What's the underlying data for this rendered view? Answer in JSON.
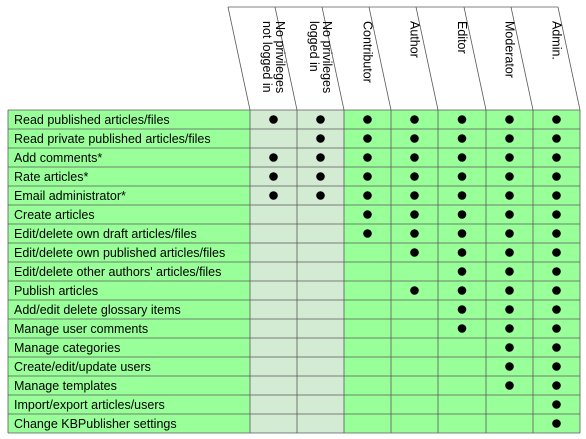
{
  "columns": [
    {
      "lines": [
        "No privileges",
        "not logged in"
      ],
      "zone": "light"
    },
    {
      "lines": [
        "No privileges",
        "logged in"
      ],
      "zone": "light"
    },
    {
      "lines": [
        "Contributor"
      ],
      "zone": "green"
    },
    {
      "lines": [
        "Author"
      ],
      "zone": "green"
    },
    {
      "lines": [
        "Editor"
      ],
      "zone": "green"
    },
    {
      "lines": [
        "Moderator"
      ],
      "zone": "green"
    },
    {
      "lines": [
        "Admin."
      ],
      "zone": "green"
    }
  ],
  "rows": [
    {
      "label": "Read published articles/files",
      "marks": [
        1,
        1,
        1,
        1,
        1,
        1,
        1
      ]
    },
    {
      "label": "Read private published articles/files",
      "marks": [
        0,
        1,
        1,
        1,
        1,
        1,
        1
      ]
    },
    {
      "label": "Add comments*",
      "marks": [
        1,
        1,
        1,
        1,
        1,
        1,
        1
      ]
    },
    {
      "label": "Rate articles*",
      "marks": [
        1,
        1,
        1,
        1,
        1,
        1,
        1
      ]
    },
    {
      "label": "Email administrator*",
      "marks": [
        1,
        1,
        1,
        1,
        1,
        1,
        1
      ]
    },
    {
      "label": "Create articles",
      "marks": [
        0,
        0,
        1,
        1,
        1,
        1,
        1
      ]
    },
    {
      "label": "Edit/delete own draft articles/files",
      "marks": [
        0,
        0,
        1,
        1,
        1,
        1,
        1
      ]
    },
    {
      "label": "Edit/delete own published articles/files",
      "marks": [
        0,
        0,
        0,
        1,
        1,
        1,
        1
      ]
    },
    {
      "label": "Edit/delete other authors' articles/files",
      "marks": [
        0,
        0,
        0,
        0,
        1,
        1,
        1
      ]
    },
    {
      "label": "Publish articles",
      "marks": [
        0,
        0,
        0,
        1,
        1,
        1,
        1
      ]
    },
    {
      "label": "Add/edit delete glossary items",
      "marks": [
        0,
        0,
        0,
        0,
        1,
        1,
        1
      ]
    },
    {
      "label": "Manage user comments",
      "marks": [
        0,
        0,
        0,
        0,
        1,
        1,
        1
      ]
    },
    {
      "label": "Manage categories",
      "marks": [
        0,
        0,
        0,
        0,
        0,
        1,
        1
      ]
    },
    {
      "label": "Create/edit/update users",
      "marks": [
        0,
        0,
        0,
        0,
        0,
        1,
        1
      ]
    },
    {
      "label": "Manage templates",
      "marks": [
        0,
        0,
        0,
        0,
        0,
        1,
        1
      ]
    },
    {
      "label": "Import/export articles/users",
      "marks": [
        0,
        0,
        0,
        0,
        0,
        0,
        1
      ]
    },
    {
      "label": "Change KBPublisher settings",
      "marks": [
        0,
        0,
        0,
        0,
        0,
        0,
        1
      ]
    }
  ],
  "colors": {
    "label_bg": "#99ff99",
    "light_bg": "#d3ebd3",
    "green_bg": "#99ff99",
    "grid": "#5a5a5a",
    "dot": "#000000"
  }
}
